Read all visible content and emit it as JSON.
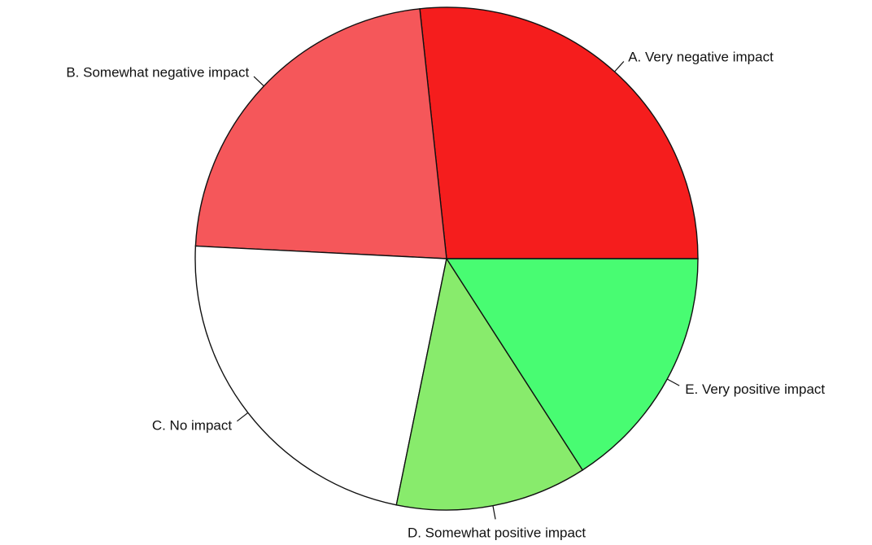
{
  "chart_data": {
    "type": "pie",
    "title": "",
    "start_angle_deg": 0,
    "direction": "counterclockwise",
    "slices": [
      {
        "label": "A. Very negative impact",
        "value": 26.7,
        "color": "#f51d1d"
      },
      {
        "label": "B. Somewhat negative impact",
        "value": 22.5,
        "color": "#f5575a"
      },
      {
        "label": "C. No impact",
        "value": 22.6,
        "color": "#ffffff"
      },
      {
        "label": "D. Somewhat positive impact",
        "value": 12.3,
        "color": "#88eb6c"
      },
      {
        "label": "E. Very positive impact",
        "value": 15.9,
        "color": "#48fc72"
      }
    ]
  }
}
